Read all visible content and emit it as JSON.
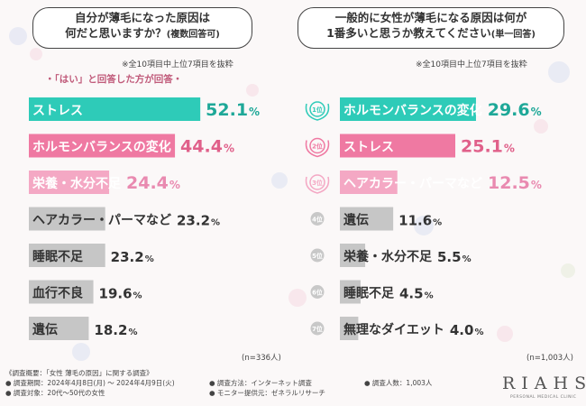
{
  "left": {
    "question_line1": "自分が薄毛になった原因は",
    "question_line2": "何だと思いますか？",
    "question_note": "(複数回答可)",
    "subnote": "※全10項目中上位7項目を抜粋",
    "yes_note": "・「はい」と回答した方が回答・",
    "sample": "(n=336人)"
  },
  "right": {
    "question_line1": "一般的に女性が薄毛になる原因は何が",
    "question_line2": "1番多いと思うか教えてください",
    "question_note": "(単一回答)",
    "subnote": "※全10項目中上位7項目を抜粋",
    "sample": "(n=1,003人)"
  },
  "footer": {
    "title": "《調査概要：「女性 薄毛の原因」に関する調査》",
    "period": "● 調査期間：2024年4月8日(月) ～ 2024年4月9日(火)",
    "target": "● 調査対象：20代～50代の女性",
    "method": "● 調査方法：インターネット調査",
    "monitor": "● モニター提供元：ゼネラルリサーチ",
    "count": "● 調査人数：1,003人",
    "logo": "RIAHS",
    "logo_sub": "PERSONAL MEDICAL CLINIC"
  },
  "colors": {
    "teal": "#2ecbb8",
    "pink": "#ef79a2",
    "lightpink": "#f4a8c4",
    "gray": "#c6c6c6",
    "tealtext": "#1ea898",
    "pinktext": "#e0608a",
    "lightpinktext": "#e98ab0",
    "graytext": "#333333"
  },
  "chart_data": [
    {
      "type": "bar",
      "orientation": "horizontal",
      "title": "自分が薄毛になった原因は何だと思いますか？(複数回答可)",
      "unit": "%",
      "categories": [
        "ストレス",
        "ホルモンバランスの変化",
        "栄養・水分不足",
        "ヘアカラー・パーマなど",
        "睡眠不足",
        "血行不良",
        "遺伝"
      ],
      "values": [
        52.1,
        44.4,
        24.4,
        23.2,
        23.2,
        19.6,
        18.2
      ],
      "value_labels": [
        "52.1",
        "44.4",
        "24.4",
        "23.2",
        "23.2",
        "19.6",
        "18.2"
      ],
      "highlight": [
        "teal",
        "pink",
        "lightpink",
        "gray",
        "gray",
        "gray",
        "gray"
      ]
    },
    {
      "type": "bar",
      "orientation": "horizontal",
      "title": "一般的に女性が薄毛になる原因は何が1番多いと思うか教えてください(単一回答)",
      "unit": "%",
      "categories": [
        "ホルモンバランスの変化",
        "ストレス",
        "ヘアカラー・パーマなど",
        "遺伝",
        "栄養・水分不足",
        "睡眠不足",
        "無理なダイエット"
      ],
      "values": [
        29.6,
        25.1,
        12.5,
        11.6,
        5.5,
        4.5,
        4.0
      ],
      "value_labels": [
        "29.6",
        "25.1",
        "12.5",
        "11.6",
        "5.5",
        "4.5",
        "4.0"
      ],
      "ranks": [
        "1位",
        "2位",
        "3位",
        "4位",
        "5位",
        "6位",
        "7位"
      ],
      "highlight": [
        "teal",
        "pink",
        "lightpink",
        "gray",
        "gray",
        "gray",
        "gray"
      ]
    }
  ]
}
